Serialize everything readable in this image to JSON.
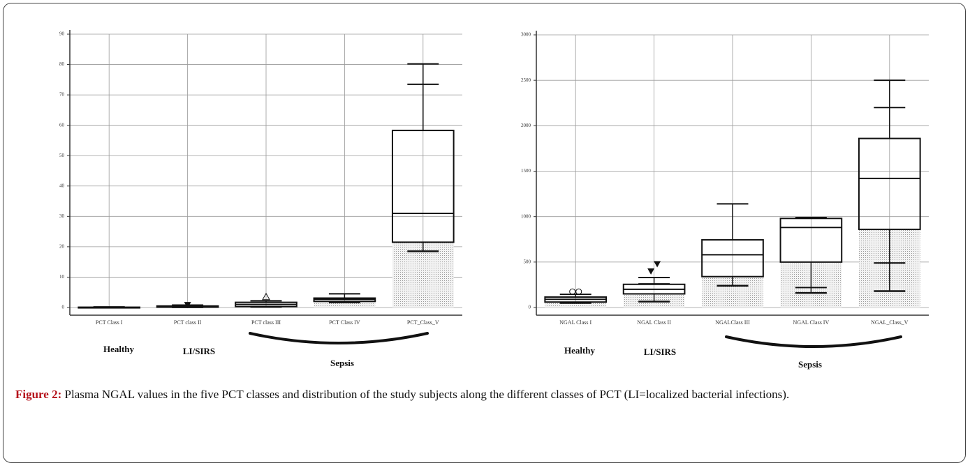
{
  "chart_data": [
    {
      "type": "box",
      "ylim": [
        0,
        90
      ],
      "yticks": [
        0,
        10,
        20,
        30,
        40,
        50,
        60,
        70,
        80,
        90
      ],
      "grid": true,
      "categories": [
        "PCT Class I",
        "PCT class II",
        "PCT class III",
        "PCT Class IV",
        "PCT_Class_V"
      ],
      "boxes": [
        {
          "low": 0,
          "q1": 0,
          "median": 0,
          "q3": 0.1,
          "high": 0.2,
          "caps": [],
          "outliers": []
        },
        {
          "low": 0.1,
          "q1": 0.1,
          "median": 0.3,
          "q3": 0.5,
          "high": 0.8,
          "caps": [],
          "outliers": [
            {
              "value": 0.9,
              "shape": "triangle-down"
            }
          ]
        },
        {
          "low": 0.2,
          "q1": 0.3,
          "median": 1,
          "q3": 1.7,
          "high": 2.2,
          "caps": [],
          "outliers": [
            {
              "value": 3.5,
              "shape": "triangle-up"
            }
          ]
        },
        {
          "low": 1.7,
          "q1": 2,
          "median": 2.7,
          "q3": 3.1,
          "high": 4.5,
          "caps": [],
          "outliers": []
        },
        {
          "low": 18.5,
          "q1": 21.5,
          "median": 31,
          "q3": 58.3,
          "high": 80.2,
          "caps": [
            73.5
          ],
          "outliers": []
        }
      ],
      "annotations": [
        "Healthy",
        "LI/SIRS",
        "Sepsis"
      ]
    },
    {
      "type": "box",
      "ylim": [
        0,
        3000
      ],
      "yticks": [
        0,
        500,
        1000,
        1500,
        2000,
        2500,
        3000
      ],
      "grid": true,
      "categories": [
        "NGAL Class I",
        "NGAL Class II",
        "NGALClass III",
        "NGAL Class IV",
        "NGAL_Class_V"
      ],
      "boxes": [
        {
          "low": 50,
          "q1": 60,
          "median": 90,
          "q3": 115,
          "high": 145,
          "caps": [],
          "outliers": [
            {
              "value": 175,
              "shape": "circle"
            },
            {
              "value": 175,
              "shape": "circle"
            }
          ]
        },
        {
          "low": 65,
          "q1": 150,
          "median": 200,
          "q3": 255,
          "high": 330,
          "caps": [
            260
          ],
          "outliers": [
            {
              "value": 400,
              "shape": "triangle-down"
            },
            {
              "value": 480,
              "shape": "triangle-down"
            }
          ]
        },
        {
          "low": 240,
          "q1": 340,
          "median": 580,
          "q3": 745,
          "high": 1140,
          "caps": [],
          "outliers": []
        },
        {
          "low": 160,
          "q1": 500,
          "median": 880,
          "q3": 980,
          "high": 990,
          "caps": [
            220
          ],
          "outliers": []
        },
        {
          "low": 180,
          "q1": 860,
          "median": 1420,
          "q3": 1860,
          "high": 2500,
          "caps": [
            2200,
            490
          ],
          "outliers": []
        }
      ],
      "annotations": [
        "Healthy",
        "LI/SIRS",
        "Sepsis"
      ]
    }
  ],
  "caption": {
    "label": "Figure 2:",
    "text": "Plasma NGAL values in the five PCT classes and distribution of the study subjects along the different classes of PCT (LI=localized bacterial infections)."
  }
}
